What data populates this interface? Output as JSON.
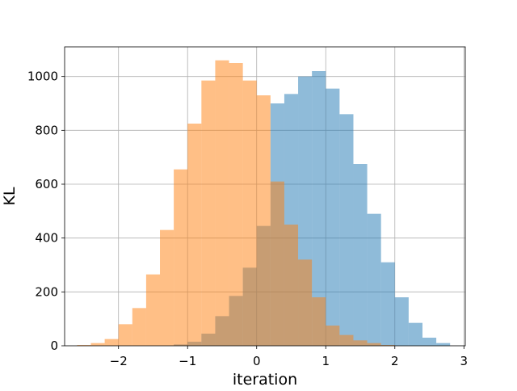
{
  "chart_data": {
    "type": "bar",
    "xlabel": "iteration",
    "ylabel": "KL",
    "xlim": [
      -2.78,
      3.02
    ],
    "ylim": [
      0,
      1110
    ],
    "grid": true,
    "xticks": [
      -2,
      -1,
      0,
      1,
      2,
      3
    ],
    "xtick_labels": [
      "−2",
      "−1",
      "0",
      "1",
      "2",
      "3"
    ],
    "yticks": [
      0,
      200,
      400,
      600,
      800,
      1000
    ],
    "ytick_labels": [
      "0",
      "200",
      "400",
      "600",
      "800",
      "1000"
    ],
    "bin_width": 0.2,
    "series": [
      {
        "color": "#1f77b4",
        "opacity": 0.5,
        "bins": [
          {
            "x0": -1.2,
            "count": 5
          },
          {
            "x0": -1.0,
            "count": 15
          },
          {
            "x0": -0.8,
            "count": 45
          },
          {
            "x0": -0.6,
            "count": 110
          },
          {
            "x0": -0.4,
            "count": 185
          },
          {
            "x0": -0.2,
            "count": 290
          },
          {
            "x0": 0.0,
            "count": 445
          },
          {
            "x0": 0.2,
            "count": 900
          },
          {
            "x0": 0.4,
            "count": 935
          },
          {
            "x0": 0.6,
            "count": 1000
          },
          {
            "x0": 0.8,
            "count": 1020
          },
          {
            "x0": 1.0,
            "count": 955
          },
          {
            "x0": 1.2,
            "count": 860
          },
          {
            "x0": 1.4,
            "count": 675
          },
          {
            "x0": 1.6,
            "count": 490
          },
          {
            "x0": 1.8,
            "count": 310
          },
          {
            "x0": 2.0,
            "count": 180
          },
          {
            "x0": 2.2,
            "count": 85
          },
          {
            "x0": 2.4,
            "count": 30
          },
          {
            "x0": 2.6,
            "count": 10
          }
        ]
      },
      {
        "color": "#ff7f0e",
        "opacity": 0.5,
        "bins": [
          {
            "x0": -2.6,
            "count": 3
          },
          {
            "x0": -2.4,
            "count": 10
          },
          {
            "x0": -2.2,
            "count": 25
          },
          {
            "x0": -2.0,
            "count": 80
          },
          {
            "x0": -1.8,
            "count": 140
          },
          {
            "x0": -1.6,
            "count": 265
          },
          {
            "x0": -1.4,
            "count": 430
          },
          {
            "x0": -1.2,
            "count": 655
          },
          {
            "x0": -1.0,
            "count": 825
          },
          {
            "x0": -0.8,
            "count": 985
          },
          {
            "x0": -0.6,
            "count": 1060
          },
          {
            "x0": -0.4,
            "count": 1050
          },
          {
            "x0": -0.2,
            "count": 985
          },
          {
            "x0": 0.0,
            "count": 930
          },
          {
            "x0": 0.2,
            "count": 610
          },
          {
            "x0": 0.4,
            "count": 450
          },
          {
            "x0": 0.6,
            "count": 320
          },
          {
            "x0": 0.8,
            "count": 180
          },
          {
            "x0": 1.0,
            "count": 75
          },
          {
            "x0": 1.2,
            "count": 40
          },
          {
            "x0": 1.4,
            "count": 20
          },
          {
            "x0": 1.6,
            "count": 10
          },
          {
            "x0": 1.8,
            "count": 3
          }
        ]
      }
    ]
  }
}
